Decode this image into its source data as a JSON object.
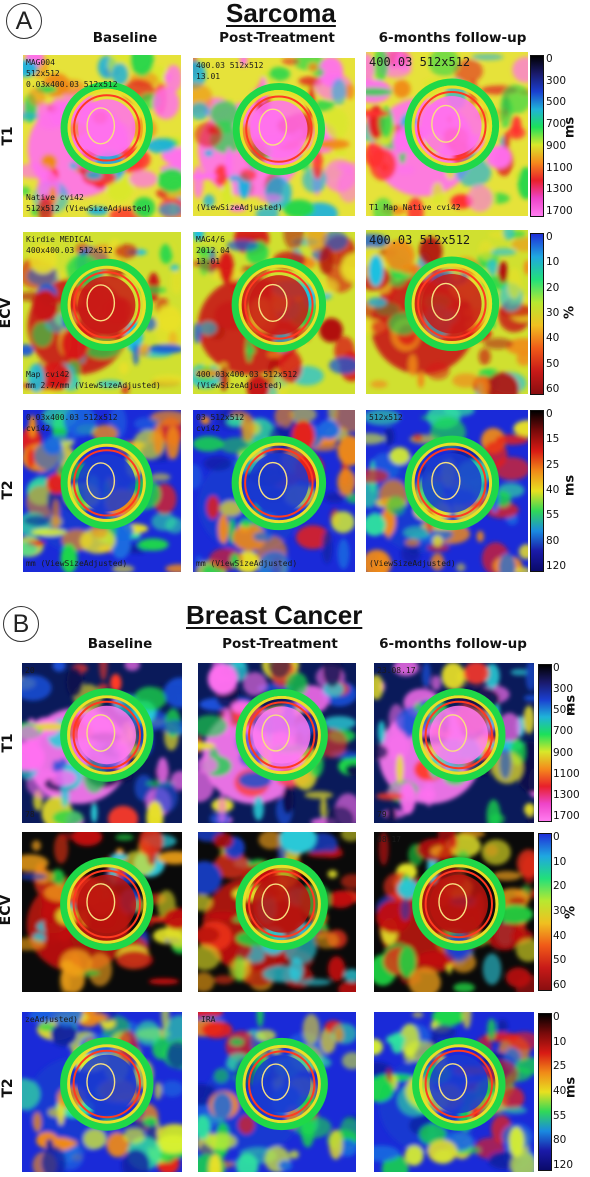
{
  "panels": [
    {
      "letter": "A",
      "title": "Sarcoma",
      "columns": [
        "Baseline",
        "Post-Treatment",
        "6-months follow-up"
      ],
      "rows": [
        {
          "label": "T1",
          "colorbar": {
            "unit": "ms",
            "ticks": [
              "0",
              "300",
              "500",
              "700",
              "900",
              "1100",
              "1300",
              "1700"
            ],
            "colors": [
              "#000000",
              "#1a1a6b",
              "#1a3fd0",
              "#1fb3d8",
              "#1ce05a",
              "#d8e82a",
              "#f58a1c",
              "#e8202a",
              "#ee44c8",
              "#ff7cf0"
            ]
          },
          "overlays": [
            [
              "MAG004",
              "512x512",
              "0.03x400.03 512x512",
              "Native cvi42",
              "512x512 (ViewSizeAdjusted)"
            ],
            [
              "400.03 512x512",
              "13.01",
              "(ViewSizeAdjusted)"
            ],
            [
              "400.03 512x512",
              "T1 Map Native cvi42"
            ]
          ]
        },
        {
          "label": "ECV",
          "colorbar": {
            "unit": "%",
            "ticks": [
              "0",
              "10",
              "20",
              "30",
              "40",
              "50",
              "60"
            ],
            "colors": [
              "#1f2fd8",
              "#1fa8e0",
              "#22e07a",
              "#b8e830",
              "#f0c020",
              "#f05a18",
              "#c81a18",
              "#8a0e10"
            ]
          },
          "overlays": [
            [
              "Kirdie MEDICAL",
              "400x400.03 512x512",
              "Map cvi42",
              "mm 2.7/mm (ViewSizeAdjusted)"
            ],
            [
              "MAG4/6",
              "2012.04",
              "13.01",
              "400.03x400.03 512x512",
              "(ViewSizeAdjusted)"
            ],
            [
              "400.03 512x512"
            ]
          ]
        },
        {
          "label": "T2",
          "colorbar": {
            "unit": "ms",
            "ticks": [
              "0",
              "15",
              "25",
              "40",
              "55",
              "80",
              "120"
            ],
            "colors": [
              "#000000",
              "#7a0a0a",
              "#d81a14",
              "#f08a18",
              "#e8e020",
              "#30d858",
              "#1a8ae0",
              "#1a1aa8",
              "#0a0a6a"
            ]
          },
          "overlays": [
            [
              "0.03x400.03 512x512",
              "cvi42",
              "mm (ViewSizeAdjusted)"
            ],
            [
              "03 512x512",
              "cvi42",
              "mm (ViewSizeAdjusted)"
            ],
            [
              "512x512",
              "(ViewSizeAdjusted)"
            ]
          ]
        }
      ]
    },
    {
      "letter": "B",
      "title": "Breast Cancer",
      "columns": [
        "Baseline",
        "Post-Treatment",
        "6-months follow-up"
      ],
      "rows": [
        {
          "label": "T1",
          "colorbar": {
            "unit": "ms",
            "ticks": [
              "0",
              "300",
              "500",
              "700",
              "900",
              "1100",
              "1300",
              "1700"
            ],
            "colors": [
              "#000000",
              "#1a1a6b",
              "#1a3fd0",
              "#1fb3d8",
              "#1ce05a",
              "#d8e82a",
              "#f58a1c",
              "#e8202a",
              "#ee44c8",
              "#ff7cf0"
            ]
          },
          "overlays": [
            [
              "20",
              "78"
            ],
            [],
            [
              "23.08.17",
              "79"
            ]
          ]
        },
        {
          "label": "ECV",
          "colorbar": {
            "unit": "%",
            "ticks": [
              "0",
              "10",
              "20",
              "30",
              "40",
              "50",
              "60"
            ],
            "colors": [
              "#1f2fd8",
              "#1fa8e0",
              "#22e07a",
              "#b8e830",
              "#f0c020",
              "#f05a18",
              "#c81a18",
              "#8a0e10"
            ]
          },
          "overlays": [
            [],
            [],
            [
              "08.17"
            ]
          ]
        },
        {
          "label": "T2",
          "colorbar": {
            "unit": "ms",
            "ticks": [
              "0",
              "10",
              "25",
              "40",
              "55",
              "80",
              "120"
            ],
            "colors": [
              "#000000",
              "#7a0a0a",
              "#d81a14",
              "#f08a18",
              "#e8e020",
              "#30d858",
              "#1a8ae0",
              "#1a1aa8",
              "#0a0a6a"
            ]
          },
          "overlays": [
            [
              "zeAdjusted)"
            ],
            [
              "IRA"
            ],
            []
          ]
        }
      ]
    }
  ]
}
